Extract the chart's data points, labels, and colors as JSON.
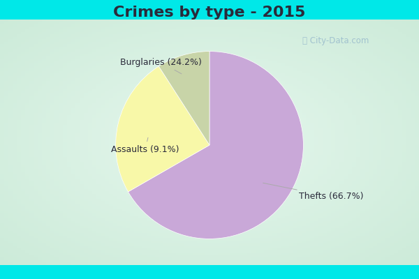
{
  "title": "Crimes by type - 2015",
  "slices": [
    {
      "label": "Thefts (66.7%)",
      "value": 66.7,
      "color": "#c9a8d8"
    },
    {
      "label": "Burglaries (24.2%)",
      "value": 24.2,
      "color": "#f8f8a8"
    },
    {
      "label": "Assaults (9.1%)",
      "value": 9.1,
      "color": "#c8d4a8"
    }
  ],
  "bg_border": "#00e8e8",
  "bg_main": "#cceedd",
  "title_fontsize": 16,
  "title_color": "#2a2a3a",
  "label_fontsize": 9,
  "watermark": "ⓘ City-Data.com",
  "watermark_color": "#99bbcc"
}
